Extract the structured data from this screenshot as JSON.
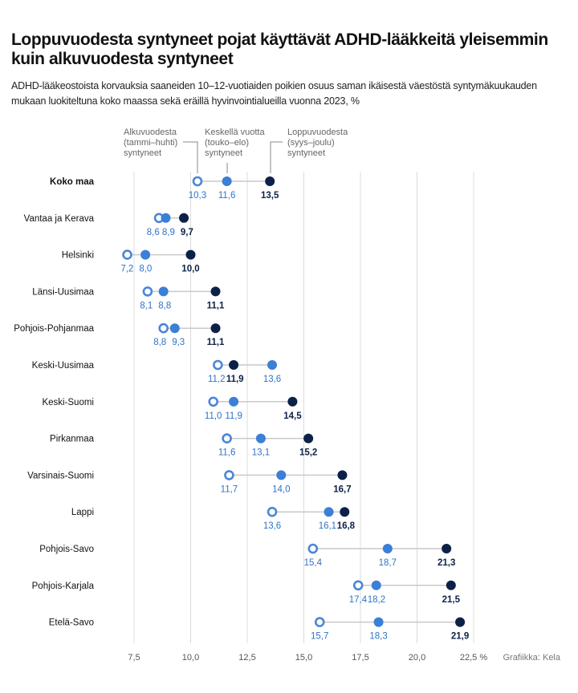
{
  "chart_data": {
    "type": "scatter",
    "title": "Loppuvuodesta syntyneet pojat käyttävät ADHD-lääkkeitä yleisemmin kuin alkuvuodesta syntyneet",
    "subtitle": "ADHD-lääkeostoista korvauksia saaneiden 10–12-vuotiaiden poikien osuus saman ikäisestä väestöstä syntymäkuukauden mukaan luokiteltuna koko maassa sekä eräillä hyvinvointialueilla vuonna 2023, %",
    "credit": "Grafiikka: Kela",
    "unit": "%",
    "xlim": [
      6.0,
      22.5
    ],
    "ticks": [
      7.5,
      10.0,
      12.5,
      15.0,
      17.5,
      20.0,
      22.5
    ],
    "tick_labels": [
      "7,5",
      "10,0",
      "12,5",
      "15,0",
      "17,5",
      "20,0",
      "22,5 %"
    ],
    "categories": [
      "Koko maa",
      "Vantaa ja Kerava",
      "Helsinki",
      "Länsi-Uusimaa",
      "Pohjois-Pohjanmaa",
      "Keski-Uusimaa",
      "Keski-Suomi",
      "Pirkanmaa",
      "Varsinais-Suomi",
      "Lappi",
      "Pohjois-Savo",
      "Pohjois-Karjala",
      "Etelä-Savo"
    ],
    "series": [
      {
        "name": "Alkuvuodesta (tammi–huhti) syntyneet",
        "legend_lines": [
          "Alkuvuodesta",
          "(tammi–huhti)",
          "syntyneet"
        ],
        "style": "hollow",
        "color": "#4a86d8",
        "values": [
          10.3,
          8.6,
          7.2,
          8.1,
          8.8,
          11.2,
          11.0,
          11.6,
          11.7,
          13.6,
          15.4,
          17.4,
          15.7
        ],
        "labels": [
          "10,3",
          "8,6",
          "7,2",
          "8,1",
          "8,8",
          "11,2",
          "11,0",
          "11,6",
          "11,7",
          "13,6",
          "15,4",
          "17,4",
          "15,7"
        ]
      },
      {
        "name": "Keskellä vuotta (touko–elo) syntyneet",
        "legend_lines": [
          "Keskellä vuotta",
          "(touko–elo)",
          "syntyneet"
        ],
        "style": "filled",
        "color": "#3b7fd6",
        "values": [
          11.6,
          8.9,
          8.0,
          8.8,
          9.3,
          13.6,
          11.9,
          13.1,
          14.0,
          16.1,
          18.7,
          18.2,
          18.3
        ],
        "labels": [
          "11,6",
          "8,9",
          "8,0",
          "8,8",
          "9,3",
          "13,6",
          "11,9",
          "13,1",
          "14,0",
          "16,1",
          "18,7",
          "18,2",
          "18,3"
        ]
      },
      {
        "name": "Loppuvuodesta (syys–joulu) syntyneet",
        "legend_lines": [
          "Loppuvuodesta",
          "(syys–joulu)",
          "syntyneet"
        ],
        "style": "filled",
        "color": "#0c2147",
        "values": [
          13.5,
          9.7,
          10.0,
          11.1,
          11.1,
          11.9,
          14.5,
          15.2,
          16.7,
          16.8,
          21.3,
          21.5,
          21.9
        ],
        "labels": [
          "13,5",
          "9,7",
          "10,0",
          "11,1",
          "11,1",
          "11,9",
          "14,5",
          "15,2",
          "16,7",
          "16,8",
          "21,3",
          "21,5",
          "21,9"
        ]
      }
    ]
  }
}
